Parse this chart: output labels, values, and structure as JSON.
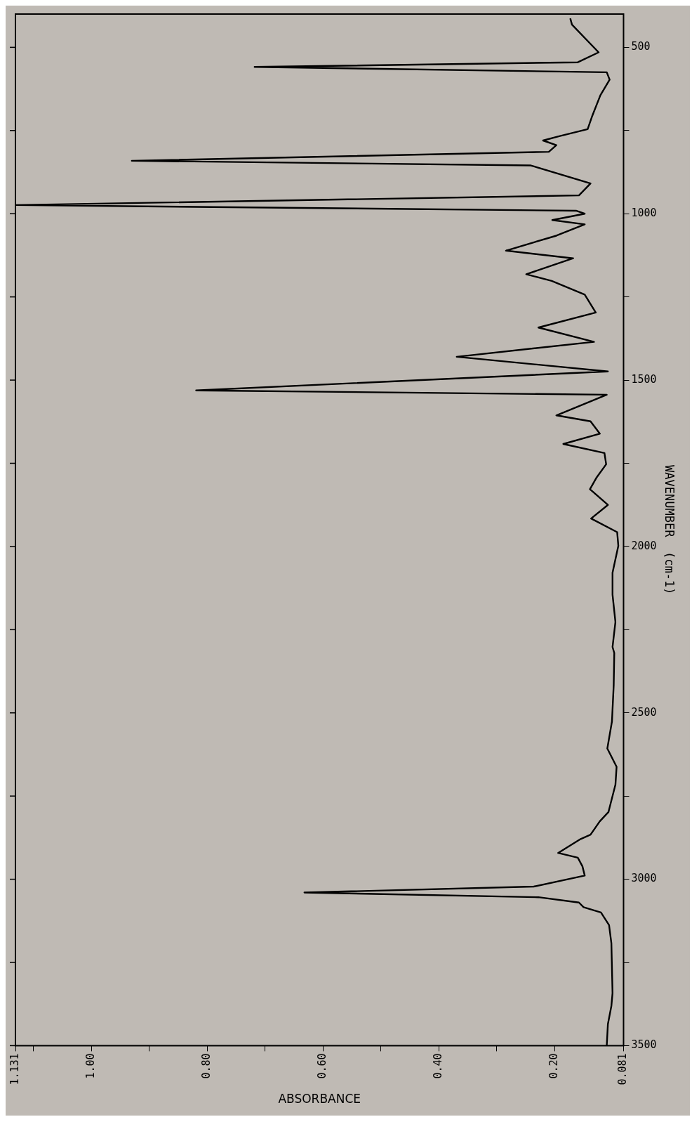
{
  "chart_data": {
    "type": "line",
    "xlabel": "ABSORBANCE",
    "ylabel": "WAVENUMBER  (cm-1)",
    "x": [
      0.173,
      0.17,
      0.124,
      0.16,
      0.718,
      0.11,
      0.105,
      0.121,
      0.135,
      0.143,
      0.192,
      0.22,
      0.197,
      0.21,
      0.93,
      0.241,
      0.138,
      0.158,
      1.131,
      0.163,
      0.148,
      0.204,
      0.148,
      0.197,
      0.284,
      0.168,
      0.249,
      0.205,
      0.148,
      0.129,
      0.228,
      0.132,
      0.369,
      0.108,
      0.819,
      0.11,
      0.197,
      0.138,
      0.122,
      0.185,
      0.114,
      0.111,
      0.128,
      0.139,
      0.108,
      0.137,
      0.092,
      0.09,
      0.1,
      0.1,
      0.095,
      0.1,
      0.097,
      0.098,
      0.101,
      0.109,
      0.093,
      0.095,
      0.105,
      0.107,
      0.122,
      0.138,
      0.155,
      0.194,
      0.16,
      0.152,
      0.148,
      0.236,
      0.632,
      0.228,
      0.158,
      0.15,
      0.12,
      0.106,
      0.102,
      0.1,
      0.102,
      0.108,
      0.11
    ],
    "series": [
      {
        "color": "#000000",
        "values": [
          413,
          432,
          515,
          545,
          559,
          575,
          597,
          644,
          706,
          746,
          767,
          780,
          794,
          814,
          841,
          855,
          909,
          945,
          974,
          991,
          1000,
          1019,
          1032,
          1066,
          1111,
          1134,
          1182,
          1202,
          1243,
          1297,
          1342,
          1385,
          1430,
          1474,
          1531,
          1544,
          1606,
          1624,
          1661,
          1692,
          1719,
          1753,
          1794,
          1828,
          1875,
          1916,
          1957,
          1998,
          2079,
          2145,
          2227,
          2302,
          2320,
          2417,
          2526,
          2607,
          2662,
          2716,
          2784,
          2798,
          2826,
          2866,
          2879,
          2921,
          2935,
          2961,
          2989,
          3022,
          3040,
          3054,
          3070,
          3084,
          3100,
          3138,
          3192,
          3342,
          3381,
          3435,
          3500
        ]
      }
    ],
    "ylim": [
      3500,
      400
    ],
    "yticks": [
      {
        "value": 500,
        "label": "500"
      },
      {
        "value": 750,
        "label": null
      },
      {
        "value": 1000,
        "label": "1000"
      },
      {
        "value": 1250,
        "label": null
      },
      {
        "value": 1500,
        "label": "1500"
      },
      {
        "value": 1750,
        "label": null
      },
      {
        "value": 2000,
        "label": "2000"
      },
      {
        "value": 2250,
        "label": null
      },
      {
        "value": 2500,
        "label": "2500"
      },
      {
        "value": 2750,
        "label": null
      },
      {
        "value": 3000,
        "label": "3000"
      },
      {
        "value": 3250,
        "label": null
      },
      {
        "value": 3500,
        "label": "3500"
      }
    ],
    "xlim": [
      1.131,
      0.081
    ],
    "xticks": [
      {
        "value": 1.131,
        "label": "1.131"
      },
      {
        "value": 1.1,
        "label": null
      },
      {
        "value": 1.0,
        "label": "1.00"
      },
      {
        "value": 0.9,
        "label": null
      },
      {
        "value": 0.8,
        "label": "0.80"
      },
      {
        "value": 0.7,
        "label": null
      },
      {
        "value": 0.6,
        "label": "0.60"
      },
      {
        "value": 0.5,
        "label": null
      },
      {
        "value": 0.4,
        "label": "0.40"
      },
      {
        "value": 0.3,
        "label": null
      },
      {
        "value": 0.2,
        "label": "0.20"
      },
      {
        "value": 0.081,
        "label": "0.081"
      }
    ],
    "grid": false,
    "legend": false,
    "marker": "none",
    "line_style": "solid"
  }
}
